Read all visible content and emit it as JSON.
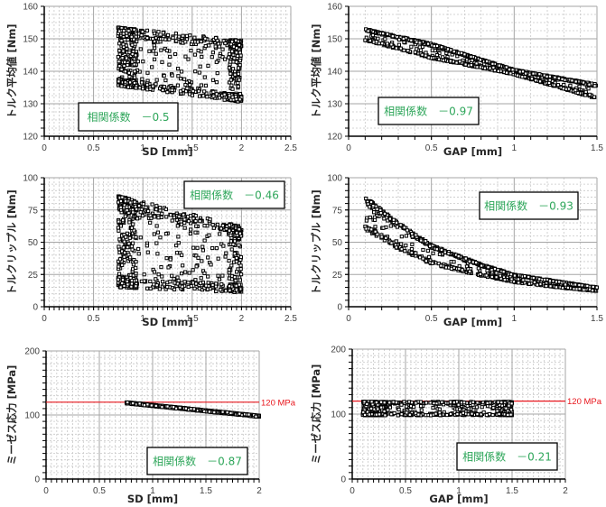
{
  "colors": {
    "annotation_text": "#2ea65a",
    "reference_line": "#e8161d",
    "marker": "#000000",
    "grid_major": "#a6a6a6",
    "grid_minor": "#c8c8c8"
  },
  "chart_data": [
    {
      "id": "torque-avg-vs-sd",
      "type": "scatter",
      "title": "",
      "xlabel": "SD [mm]",
      "ylabel": "トルク平均値 [Nm]",
      "xlim": [
        0,
        2.5
      ],
      "ylim": [
        120,
        160
      ],
      "xticks": [
        0,
        0.5,
        1,
        1.5,
        2,
        2.5
      ],
      "xtick_labels": [
        "0",
        "0.5",
        "1",
        "1.5",
        "2",
        "2.5"
      ],
      "yticks": [
        120,
        130,
        140,
        150,
        160
      ],
      "ytick_labels": [
        "120",
        "130",
        "140",
        "150",
        "160"
      ],
      "grid": true,
      "annotation": {
        "label": "相関係数",
        "value": "－0.5",
        "position": "bottom-left"
      },
      "reference_line": null,
      "series": [
        {
          "name": "samples",
          "marker": "hollow-square",
          "cloud": {
            "x_range": [
              0.75,
              2.0
            ],
            "y_top_at_xmin": 153.5,
            "y_top_at_xmax": 149.5,
            "y_bottom_at_xmin": 135.5,
            "y_bottom_at_xmax": 130.5,
            "count": 900,
            "dense_edges": true
          }
        }
      ]
    },
    {
      "id": "torque-avg-vs-gap",
      "type": "scatter",
      "title": "",
      "xlabel": "GAP [mm]",
      "ylabel": "トルク平均値 [Nm]",
      "xlim": [
        0,
        1.5
      ],
      "ylim": [
        120,
        160
      ],
      "xticks": [
        0,
        0.5,
        1,
        1.5
      ],
      "xtick_labels": [
        "0",
        "0.5",
        "1",
        "1.5"
      ],
      "yticks": [
        120,
        130,
        140,
        150,
        160
      ],
      "ytick_labels": [
        "120",
        "130",
        "140",
        "150",
        "160"
      ],
      "grid": true,
      "annotation": {
        "label": "相関係数",
        "value": "－0.97",
        "position": "bottom-left"
      },
      "reference_line": null,
      "series": [
        {
          "name": "samples",
          "marker": "hollow-square",
          "trend": {
            "x_range": [
              0.1,
              1.5
            ],
            "upper_band": [
              [
                0.1,
                153
              ],
              [
                0.5,
                148.5
              ],
              [
                1.0,
                140.5
              ],
              [
                1.5,
                136
              ]
            ],
            "lower_band": [
              [
                0.1,
                149.5
              ],
              [
                0.5,
                144
              ],
              [
                1.0,
                139
              ],
              [
                1.5,
                131.5
              ]
            ],
            "count": 900
          }
        }
      ]
    },
    {
      "id": "torque-ripple-vs-sd",
      "type": "scatter",
      "title": "",
      "xlabel": "SD [mm]",
      "ylabel": "トルクリップル [Nm]",
      "xlim": [
        0,
        2.5
      ],
      "ylim": [
        0,
        100
      ],
      "xticks": [
        0,
        0.5,
        1,
        1.5,
        2,
        2.5
      ],
      "xtick_labels": [
        "0",
        "0.5",
        "1",
        "1.5",
        "2",
        "2.5"
      ],
      "yticks": [
        0,
        25,
        50,
        75,
        100
      ],
      "ytick_labels": [
        "0",
        "25",
        "50",
        "75",
        "100"
      ],
      "grid": true,
      "annotation": {
        "label": "相関係数",
        "value": "－0.46",
        "position": "top-right"
      },
      "reference_line": null,
      "series": [
        {
          "name": "samples",
          "marker": "hollow-square",
          "cloud": {
            "x_range": [
              0.75,
              2.0
            ],
            "y_top_at_xmin": 86,
            "y_top_at_xmax": 62,
            "y_bottom_at_xmin": 15,
            "y_bottom_at_xmax": 11,
            "count": 900,
            "dense_edges": true
          }
        }
      ]
    },
    {
      "id": "torque-ripple-vs-gap",
      "type": "scatter",
      "title": "",
      "xlabel": "GAP [mm]",
      "ylabel": "トルクリップル [Nm]",
      "xlim": [
        0,
        1.5
      ],
      "ylim": [
        0,
        100
      ],
      "xticks": [
        0,
        0.5,
        1,
        1.5
      ],
      "xtick_labels": [
        "0",
        "0.5",
        "1",
        "1.5"
      ],
      "yticks": [
        0,
        25,
        50,
        75,
        100
      ],
      "ytick_labels": [
        "0",
        "25",
        "50",
        "75",
        "100"
      ],
      "grid": true,
      "annotation": {
        "label": "相関係数",
        "value": "－0.93",
        "position": "top-right"
      },
      "reference_line": null,
      "series": [
        {
          "name": "samples",
          "marker": "hollow-square",
          "trend": {
            "x_range": [
              0.1,
              1.5
            ],
            "upper_band": [
              [
                0.1,
                85
              ],
              [
                0.3,
                65
              ],
              [
                0.5,
                48
              ],
              [
                0.8,
                33
              ],
              [
                1.0,
                25
              ],
              [
                1.25,
                20
              ],
              [
                1.5,
                15
              ]
            ],
            "lower_band": [
              [
                0.1,
                60
              ],
              [
                0.3,
                45
              ],
              [
                0.5,
                33
              ],
              [
                0.8,
                24
              ],
              [
                1.0,
                19
              ],
              [
                1.25,
                15
              ],
              [
                1.5,
                12
              ]
            ],
            "count": 900
          }
        }
      ]
    },
    {
      "id": "mises-stress-vs-sd",
      "type": "scatter",
      "title": "",
      "xlabel": "SD [mm]",
      "ylabel": "ミーゼス応力 [MPa]",
      "xlim": [
        0,
        2
      ],
      "ylim": [
        0,
        200
      ],
      "xticks": [
        0,
        0.5,
        1,
        1.5,
        2
      ],
      "xtick_labels": [
        "0",
        "0.5",
        "1",
        "1.5",
        "2"
      ],
      "yticks": [
        0,
        100,
        200
      ],
      "ytick_labels": [
        "0",
        "100",
        "200"
      ],
      "grid": true,
      "annotation": {
        "label": "相関係数",
        "value": "－0.87",
        "position": "bottom-right"
      },
      "reference_line": {
        "y": 120,
        "label": "120 MPa"
      },
      "series": [
        {
          "name": "samples",
          "marker": "hollow-square",
          "trend": {
            "x_range": [
              0.75,
              2.0
            ],
            "upper_band": [
              [
                0.75,
                120
              ],
              [
                2.0,
                99
              ]
            ],
            "lower_band": [
              [
                0.75,
                118
              ],
              [
                2.0,
                97
              ]
            ],
            "count": 500
          }
        }
      ]
    },
    {
      "id": "mises-stress-vs-gap",
      "type": "scatter",
      "title": "",
      "xlabel": "GAP [mm]",
      "ylabel": "ミーゼス応力 [MPa]",
      "xlim": [
        0,
        2
      ],
      "ylim": [
        0,
        200
      ],
      "xticks": [
        0,
        0.5,
        1,
        1.5,
        2
      ],
      "xtick_labels": [
        "0",
        "0.5",
        "1",
        "1.5",
        "2"
      ],
      "yticks": [
        0,
        100,
        200
      ],
      "ytick_labels": [
        "0",
        "100",
        "200"
      ],
      "grid": true,
      "annotation": {
        "label": "相関係数",
        "value": "－0.21",
        "position": "bottom-right"
      },
      "reference_line": {
        "y": 120,
        "label": "120 MPa"
      },
      "series": [
        {
          "name": "samples",
          "marker": "hollow-square",
          "cloud": {
            "x_range": [
              0.1,
              1.5
            ],
            "y_top_at_xmin": 119,
            "y_top_at_xmax": 119,
            "y_bottom_at_xmin": 98,
            "y_bottom_at_xmax": 98,
            "count": 900,
            "dense_edges": true
          }
        }
      ]
    }
  ]
}
